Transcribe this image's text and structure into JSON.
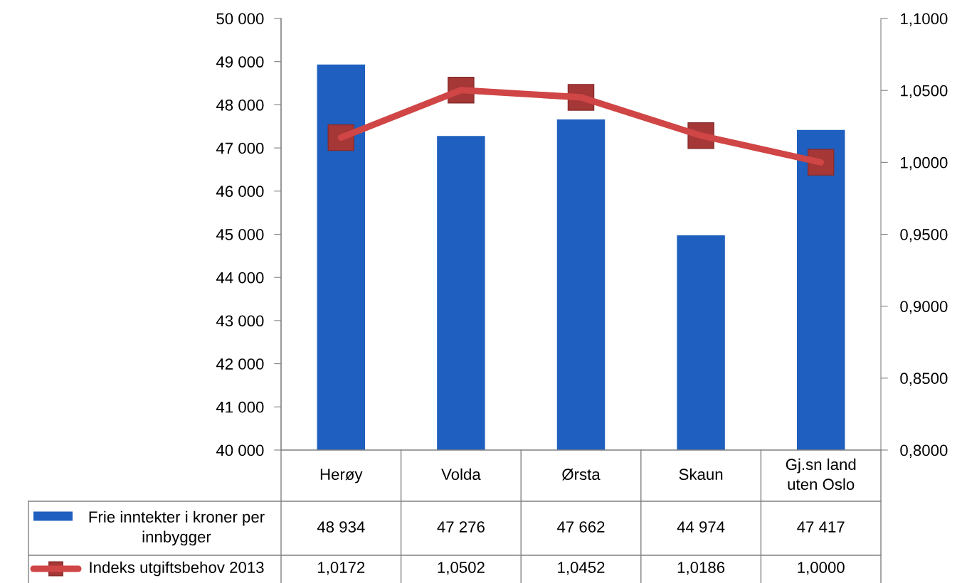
{
  "chart_data": {
    "type": "bar",
    "categories": [
      "Herøy",
      "Volda",
      "Ørsta",
      "Skaun",
      "Gj.sn land\nuten Oslo"
    ],
    "series": [
      {
        "name": "Frie inntekter i kroner per\ninnbygger",
        "color": "#1f5fbf",
        "values": [
          48934,
          47276,
          47662,
          44974,
          47417
        ],
        "value_labels": [
          "48 934",
          "47 276",
          "47 662",
          "44 974",
          "47 417"
        ]
      },
      {
        "name": "Indeks utgiftsbehov 2013",
        "type": "line",
        "axis": "y2",
        "color": "#d04545",
        "marker": "square",
        "values": [
          1.0172,
          1.0502,
          1.0452,
          1.0186,
          1.0
        ],
        "value_labels": [
          "1,0172",
          "1,0502",
          "1,0452",
          "1,0186",
          "1,0000"
        ]
      }
    ],
    "ylim": [
      40000,
      50000
    ],
    "yticks": [
      {
        "value": 40000,
        "label": "40 000"
      },
      {
        "value": 41000,
        "label": "41 000"
      },
      {
        "value": 42000,
        "label": "42 000"
      },
      {
        "value": 43000,
        "label": "43 000"
      },
      {
        "value": 44000,
        "label": "44 000"
      },
      {
        "value": 45000,
        "label": "45 000"
      },
      {
        "value": 46000,
        "label": "46 000"
      },
      {
        "value": 47000,
        "label": "47 000"
      },
      {
        "value": 48000,
        "label": "48 000"
      },
      {
        "value": 49000,
        "label": "49 000"
      },
      {
        "value": 50000,
        "label": "50 000"
      }
    ],
    "y2lim": [
      0.8,
      1.1
    ],
    "y2ticks": [
      {
        "value": 0.8,
        "label": "0,8000"
      },
      {
        "value": 0.85,
        "label": "0,8500"
      },
      {
        "value": 0.9,
        "label": "0,9000"
      },
      {
        "value": 0.95,
        "label": "0,9500"
      },
      {
        "value": 1.0,
        "label": "1,0000"
      },
      {
        "value": 1.05,
        "label": "1,0500"
      },
      {
        "value": 1.1,
        "label": "1,1000"
      }
    ],
    "legend": "bottom"
  }
}
